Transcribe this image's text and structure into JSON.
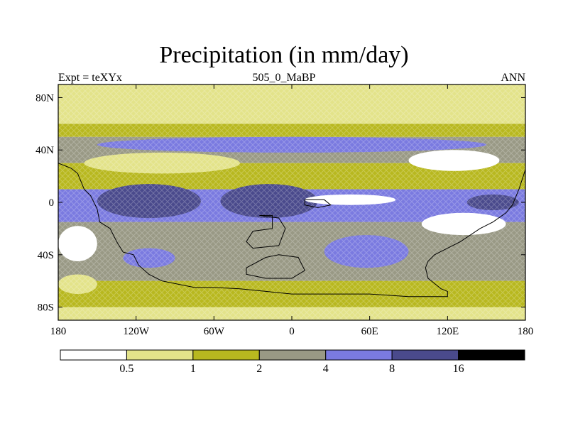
{
  "chart_data": {
    "type": "heatmap",
    "title": "Precipitation (in mm/day)",
    "subtitle_left": "Expt = teXYx",
    "subtitle_center": "505_0_MaBP",
    "subtitle_right": "ANN",
    "x_ticks": [
      "180",
      "120W",
      "60W",
      "0",
      "60E",
      "120E",
      "180"
    ],
    "x_tick_values": [
      -180,
      -120,
      -60,
      0,
      60,
      120,
      180
    ],
    "y_ticks": [
      "80N",
      "40N",
      "0",
      "40S",
      "80S"
    ],
    "y_tick_values": [
      80,
      40,
      0,
      -40,
      -80
    ],
    "xlim": [
      -180,
      180
    ],
    "ylim": [
      -90,
      90
    ],
    "colorbar": {
      "levels": [
        "0.5",
        "1",
        "2",
        "4",
        "8",
        "16"
      ],
      "colors": [
        "#ffffff",
        "#e3e38a",
        "#b8b81f",
        "#999985",
        "#7a7ae0",
        "#4a4a8c",
        "#000000"
      ]
    },
    "bands": [
      {
        "lat": [
          60,
          90
        ],
        "color": "#e3e38a"
      },
      {
        "lat": [
          50,
          60
        ],
        "color": "#b8b81f"
      },
      {
        "lat": [
          30,
          50
        ],
        "color": "#999985"
      },
      {
        "lat": [
          10,
          30
        ],
        "color": "#b8b81f"
      },
      {
        "lat": [
          -15,
          10
        ],
        "color": "#7a7ae0"
      },
      {
        "lat": [
          -35,
          -15
        ],
        "color": "#999985"
      },
      {
        "lat": [
          -60,
          -35
        ],
        "color": "#999985"
      },
      {
        "lat": [
          -80,
          -60
        ],
        "color": "#b8b81f"
      },
      {
        "lat": [
          -90,
          -80
        ],
        "color": "#e3e38a"
      }
    ],
    "patches": [
      {
        "lon": [
          -180,
          180
        ],
        "lat": [
          68,
          86
        ],
        "color": "#e3e38a"
      },
      {
        "lon": [
          -160,
          -40
        ],
        "lat": [
          22,
          38
        ],
        "color": "#e3e38a"
      },
      {
        "lon": [
          -150,
          150
        ],
        "lat": [
          38,
          50
        ],
        "color": "#7a7ae0"
      },
      {
        "lon": [
          -150,
          -70
        ],
        "lat": [
          -12,
          14
        ],
        "color": "#4a4a8c"
      },
      {
        "lon": [
          -55,
          20
        ],
        "lat": [
          -12,
          14
        ],
        "color": "#4a4a8c"
      },
      {
        "lon": [
          135,
          175
        ],
        "lat": [
          -6,
          6
        ],
        "color": "#4a4a8c"
      },
      {
        "lon": [
          90,
          160
        ],
        "lat": [
          24,
          40
        ],
        "color": "#ffffff"
      },
      {
        "lon": [
          100,
          165
        ],
        "lat": [
          -25,
          -8
        ],
        "color": "#ffffff"
      },
      {
        "lon": [
          10,
          80
        ],
        "lat": [
          -2,
          6
        ],
        "color": "#ffffff"
      },
      {
        "lon": [
          -180,
          -150
        ],
        "lat": [
          -45,
          -18
        ],
        "color": "#ffffff"
      },
      {
        "lon": [
          -60,
          20
        ],
        "lat": [
          -35,
          -18
        ],
        "color": "#999985"
      },
      {
        "lon": [
          -130,
          -90
        ],
        "lat": [
          -50,
          -35
        ],
        "color": "#7a7ae0"
      },
      {
        "lon": [
          25,
          90
        ],
        "lat": [
          -50,
          -25
        ],
        "color": "#7a7ae0"
      },
      {
        "lon": [
          -180,
          -150
        ],
        "lat": [
          -70,
          -55
        ],
        "color": "#e3e38a"
      }
    ],
    "continents": [
      [
        [
          -180,
          30
        ],
        [
          -170,
          26
        ],
        [
          -165,
          22
        ],
        [
          -160,
          10
        ],
        [
          -155,
          5
        ],
        [
          -150,
          -5
        ],
        [
          -148,
          -15
        ],
        [
          -140,
          -20
        ],
        [
          -135,
          -30
        ],
        [
          -130,
          -38
        ],
        [
          -122,
          -40
        ],
        [
          -118,
          -48
        ],
        [
          -110,
          -55
        ],
        [
          -100,
          -60
        ],
        [
          -90,
          -62
        ],
        [
          -75,
          -65
        ],
        [
          -60,
          -65
        ],
        [
          -40,
          -66
        ],
        [
          -20,
          -68
        ],
        [
          0,
          -70
        ],
        [
          40,
          -70
        ],
        [
          60,
          -70
        ],
        [
          90,
          -72
        ],
        [
          110,
          -72
        ],
        [
          120,
          -72
        ],
        [
          120,
          -68
        ],
        [
          115,
          -66
        ],
        [
          110,
          -62
        ],
        [
          105,
          -58
        ],
        [
          103,
          -50
        ],
        [
          105,
          -45
        ],
        [
          110,
          -40
        ],
        [
          120,
          -35
        ],
        [
          130,
          -30
        ],
        [
          145,
          -20
        ],
        [
          155,
          -15
        ],
        [
          165,
          -8
        ],
        [
          170,
          -2
        ],
        [
          175,
          10
        ],
        [
          180,
          25
        ]
      ],
      [
        [
          -25,
          -10
        ],
        [
          -15,
          -10
        ],
        [
          -15,
          -20
        ],
        [
          -30,
          -22
        ],
        [
          -35,
          -30
        ],
        [
          -30,
          -35
        ],
        [
          -10,
          -33
        ],
        [
          -5,
          -20
        ],
        [
          -10,
          -12
        ],
        [
          -25,
          -10
        ]
      ],
      [
        [
          -35,
          -50
        ],
        [
          -20,
          -42
        ],
        [
          -10,
          -40
        ],
        [
          5,
          -42
        ],
        [
          10,
          -52
        ],
        [
          0,
          -58
        ],
        [
          -20,
          -58
        ],
        [
          -35,
          -55
        ],
        [
          -35,
          -50
        ]
      ],
      [
        [
          10,
          2
        ],
        [
          25,
          2
        ],
        [
          30,
          -2
        ],
        [
          20,
          -4
        ],
        [
          10,
          -2
        ],
        [
          10,
          2
        ]
      ]
    ]
  }
}
